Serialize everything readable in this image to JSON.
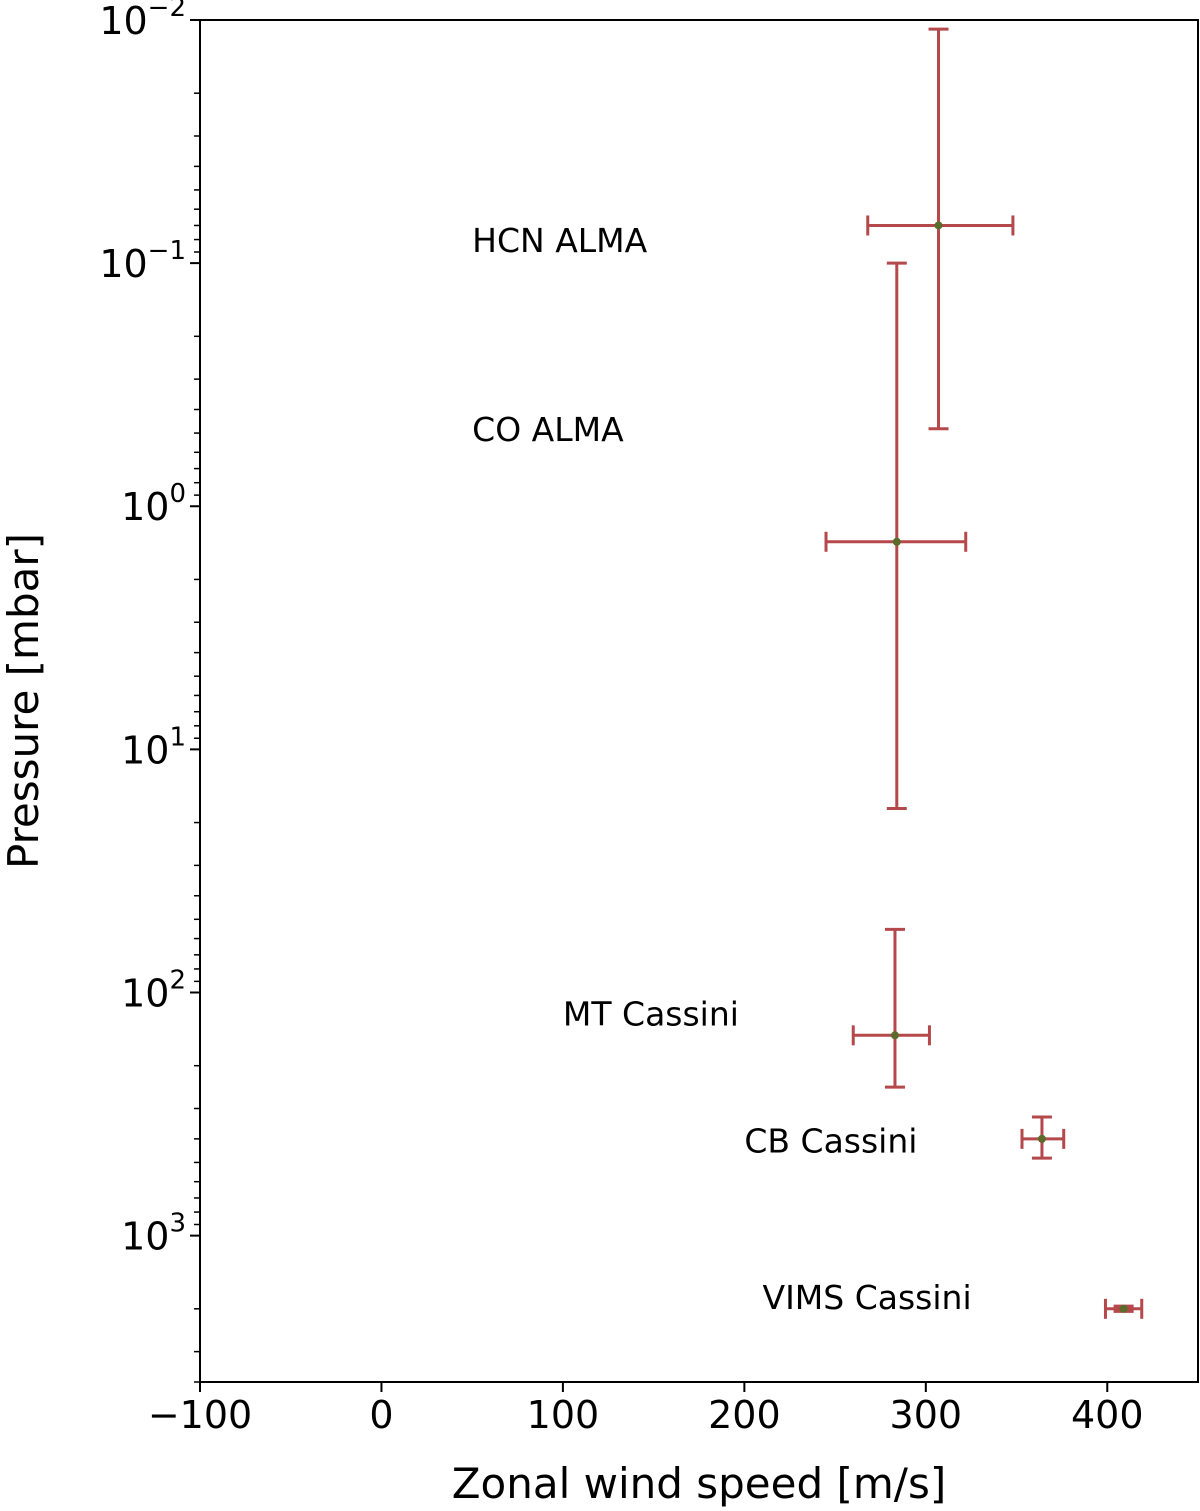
{
  "chart_data": {
    "type": "scatter",
    "title": "",
    "xlabel": "Zonal wind speed [m/s]",
    "ylabel": "Pressure [mbar]",
    "xlim": [
      -100,
      450
    ],
    "ylim": [
      4000,
      0.01
    ],
    "yscale": "log",
    "y_inverted": true,
    "grid": false,
    "legend": "none",
    "marker_color": "#5a6b2a",
    "error_color": "#b5484b",
    "x_ticks": [
      {
        "value": -100,
        "label": "−100"
      },
      {
        "value": 0,
        "label": "0"
      },
      {
        "value": 100,
        "label": "100"
      },
      {
        "value": 200,
        "label": "200"
      },
      {
        "value": 300,
        "label": "300"
      },
      {
        "value": 400,
        "label": "400"
      }
    ],
    "y_ticks": [
      {
        "value": 0.01,
        "base": "10",
        "exp": "−2"
      },
      {
        "value": 0.1,
        "base": "10",
        "exp": "−1"
      },
      {
        "value": 1,
        "base": "10",
        "exp": "0"
      },
      {
        "value": 10,
        "base": "10",
        "exp": "1"
      },
      {
        "value": 100,
        "base": "10",
        "exp": "2"
      },
      {
        "value": 1000,
        "base": "10",
        "exp": "3"
      }
    ],
    "points": [
      {
        "x": 307,
        "y": 0.07,
        "xerr": [
          268,
          348
        ],
        "yerr": [
          0.0109,
          0.48
        ]
      },
      {
        "x": 284,
        "y": 1.4,
        "xerr": [
          245,
          322
        ],
        "yerr": [
          0.1,
          17.5
        ]
      },
      {
        "x": 283,
        "y": 150,
        "xerr": [
          260,
          302
        ],
        "yerr": [
          55,
          245
        ]
      },
      {
        "x": 364,
        "y": 400,
        "xerr": [
          353,
          376
        ],
        "yerr": [
          325,
          480
        ]
      },
      {
        "x": 409,
        "y": 2000,
        "xerr": [
          399,
          419
        ],
        "yerr": [
          1950,
          2050
        ]
      }
    ],
    "annotations": [
      {
        "text": "HCN ALMA",
        "x": 50,
        "y": 0.09
      },
      {
        "text": "CO ALMA",
        "x": 50,
        "y": 0.54
      },
      {
        "text": "MT Cassini",
        "x": 100,
        "y": 137
      },
      {
        "text": "CB Cassini",
        "x": 200,
        "y": 455
      },
      {
        "text": "VIMS Cassini",
        "x": 210,
        "y": 2000
      }
    ]
  }
}
